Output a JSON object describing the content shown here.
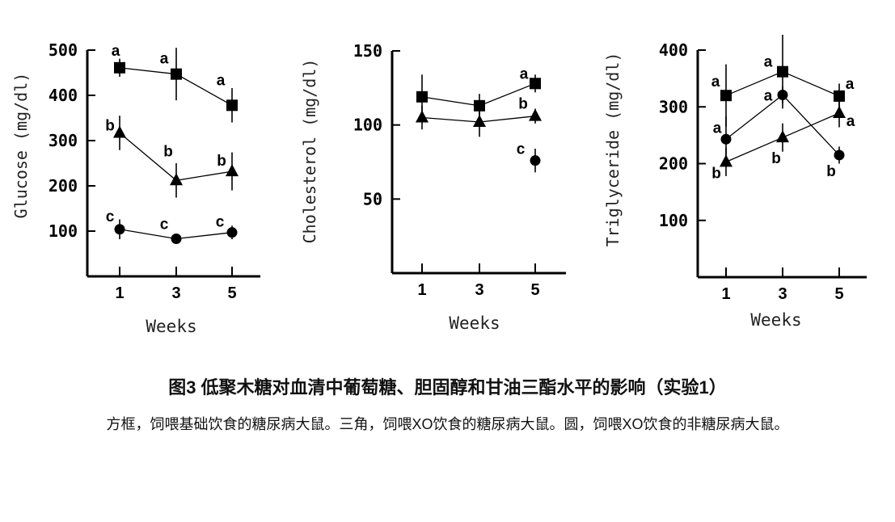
{
  "chart_data": [
    {
      "type": "line",
      "ylabel": "Glucose (mg/dl)",
      "xlabel": "Weeks",
      "x": [
        1,
        3,
        5
      ],
      "xticks": [
        "1",
        "3",
        "5"
      ],
      "ylim": [
        0,
        500
      ],
      "yticks": [
        100,
        200,
        300,
        400,
        500
      ],
      "series": [
        {
          "marker": "square",
          "values": [
            461,
            447,
            378
          ],
          "error": [
            20,
            58,
            38
          ],
          "labels": [
            "a",
            "a",
            "a"
          ]
        },
        {
          "marker": "triangle",
          "values": [
            317,
            212,
            232
          ],
          "error": [
            38,
            38,
            42
          ],
          "labels": [
            "b",
            "b",
            "b"
          ]
        },
        {
          "marker": "circle",
          "values": [
            104,
            83,
            97
          ],
          "error": [
            22,
            8,
            15
          ],
          "labels": [
            "c",
            "c",
            "c"
          ]
        }
      ]
    },
    {
      "type": "line",
      "ylabel": "Cholesterol (mg/dl)",
      "xlabel": "Weeks",
      "x": [
        1,
        3,
        5
      ],
      "xticks": [
        "1",
        "3",
        "5"
      ],
      "ylim": [
        0,
        150
      ],
      "yticks": [
        50,
        100,
        150
      ],
      "series": [
        {
          "marker": "square",
          "values": [
            119,
            113,
            128
          ],
          "error": [
            15,
            8,
            6
          ],
          "labels": [
            "",
            "",
            "a"
          ]
        },
        {
          "marker": "triangle",
          "values": [
            105,
            102,
            106
          ],
          "error": [
            8,
            10,
            5
          ],
          "labels": [
            "",
            "",
            "b"
          ]
        },
        {
          "marker": "circle",
          "values": [
            null,
            null,
            76
          ],
          "error": [
            null,
            null,
            8
          ],
          "labels": [
            "",
            "",
            "c"
          ]
        }
      ]
    },
    {
      "type": "line",
      "ylabel": "Triglyceride (mg/dl)",
      "xlabel": "Weeks",
      "x": [
        1,
        3,
        5
      ],
      "xticks": [
        "1",
        "3",
        "5"
      ],
      "ylim": [
        0,
        400
      ],
      "yticks": [
        100,
        200,
        300,
        400
      ],
      "series": [
        {
          "marker": "square",
          "values": [
            320,
            362,
            319
          ],
          "error": [
            55,
            65,
            22
          ],
          "labels": [
            "a",
            "a",
            "a"
          ]
        },
        {
          "marker": "circle",
          "values": [
            243,
            321,
            215
          ],
          "error": [
            40,
            15,
            15
          ],
          "labels": [
            "a",
            "a",
            "b"
          ]
        },
        {
          "marker": "triangle",
          "values": [
            203,
            246,
            289
          ],
          "error": [
            25,
            25,
            25
          ],
          "labels": [
            "b",
            "b",
            "a"
          ]
        }
      ]
    }
  ],
  "caption": {
    "title": "图3 低聚木糖对血清中葡萄糖、胆固醇和甘油三酯水平的影响（实验1）",
    "body": "方框，饲喂基础饮食的糖尿病大鼠。三角，饲喂XO饮食的糖尿病大鼠。圆，饲喂XO饮食的非糖尿病大鼠。"
  }
}
